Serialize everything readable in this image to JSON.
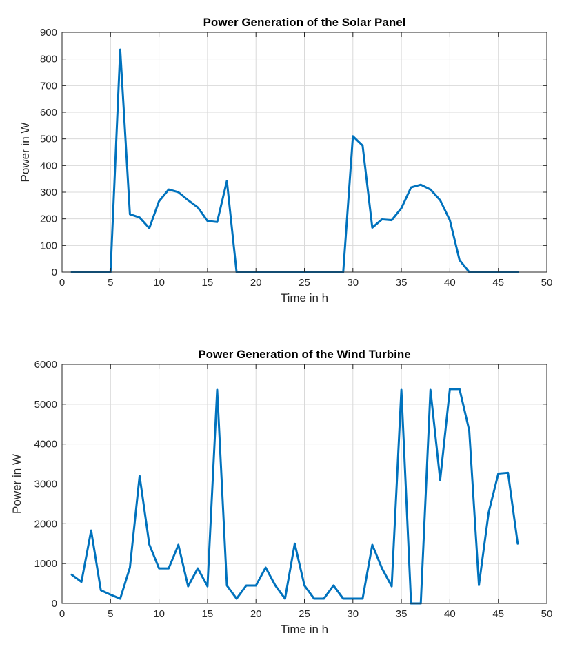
{
  "chart_data": [
    {
      "type": "line",
      "title": "Power Generation of the Solar Panel",
      "xlabel": "Time in h",
      "ylabel": "Power in W",
      "xlim": [
        0,
        50
      ],
      "ylim": [
        0,
        900
      ],
      "xticks": [
        0,
        5,
        10,
        15,
        20,
        25,
        30,
        35,
        40,
        45,
        50
      ],
      "yticks": [
        0,
        100,
        200,
        300,
        400,
        500,
        600,
        700,
        800,
        900
      ],
      "grid": true,
      "color": "#0072BD",
      "x": [
        1,
        2,
        3,
        4,
        5,
        6,
        7,
        8,
        9,
        10,
        11,
        12,
        13,
        14,
        15,
        16,
        17,
        18,
        19,
        20,
        21,
        22,
        23,
        24,
        25,
        26,
        27,
        28,
        29,
        30,
        31,
        32,
        33,
        34,
        35,
        36,
        37,
        38,
        39,
        40,
        41,
        42,
        43,
        44,
        45,
        46,
        47
      ],
      "values": [
        0,
        0,
        0,
        0,
        0,
        835,
        217,
        205,
        165,
        266,
        310,
        300,
        270,
        243,
        192,
        188,
        342,
        0,
        0,
        0,
        0,
        0,
        0,
        0,
        0,
        0,
        0,
        0,
        0,
        510,
        475,
        167,
        198,
        195,
        240,
        318,
        328,
        310,
        270,
        195,
        45,
        0,
        0,
        0,
        0,
        0,
        0
      ]
    },
    {
      "type": "line",
      "title": "Power Generation of the Wind Turbine",
      "xlabel": "Time in h",
      "ylabel": "Power in W",
      "xlim": [
        0,
        50
      ],
      "ylim": [
        0,
        6000
      ],
      "xticks": [
        0,
        5,
        10,
        15,
        20,
        25,
        30,
        35,
        40,
        45,
        50
      ],
      "yticks": [
        0,
        1000,
        2000,
        3000,
        4000,
        5000,
        6000
      ],
      "grid": true,
      "color": "#0072BD",
      "x": [
        1,
        2,
        3,
        4,
        5,
        6,
        7,
        8,
        9,
        10,
        11,
        12,
        13,
        14,
        15,
        16,
        17,
        18,
        19,
        20,
        21,
        22,
        23,
        24,
        25,
        26,
        27,
        28,
        29,
        30,
        31,
        32,
        33,
        34,
        35,
        36,
        37,
        38,
        39,
        40,
        41,
        42,
        43,
        44,
        45,
        46,
        47
      ],
      "values": [
        720,
        540,
        1830,
        330,
        220,
        120,
        900,
        3200,
        1480,
        880,
        880,
        1470,
        430,
        880,
        430,
        5360,
        450,
        120,
        450,
        450,
        900,
        450,
        120,
        1500,
        450,
        120,
        120,
        450,
        120,
        120,
        120,
        1470,
        880,
        430,
        5360,
        0,
        0,
        5360,
        3100,
        5380,
        5380,
        4340,
        460,
        2280,
        3260,
        3280,
        1500
      ]
    }
  ]
}
